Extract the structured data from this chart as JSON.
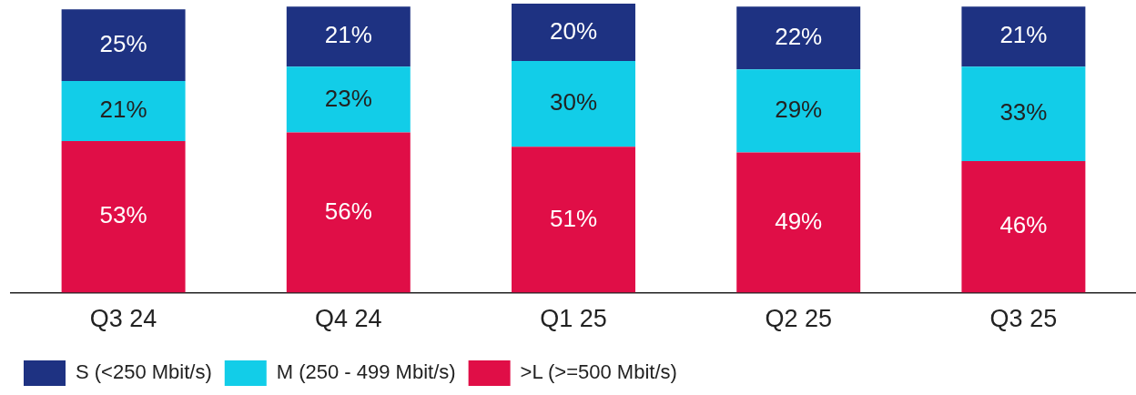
{
  "chart_data": {
    "type": "bar",
    "stacked": true,
    "legend": "bottom left",
    "tick_labels": "x",
    "grid": false,
    "categories": [
      "Q3 24",
      "Q4 24",
      "Q1 25",
      "Q2 25",
      "Q3 25"
    ],
    "series": [
      {
        "name": ">L (>=500 Mbit/s)",
        "color": "#e00e47",
        "values": [
          53,
          56,
          51,
          49,
          46
        ],
        "value_labels": [
          "53%",
          "56%",
          "51%",
          "49%",
          "46%"
        ]
      },
      {
        "name": "M (250 - 499 Mbit/s)",
        "color": "#12cde8",
        "values": [
          21,
          23,
          30,
          29,
          33
        ],
        "value_labels": [
          "21%",
          "23%",
          "30%",
          "29%",
          "33%"
        ]
      },
      {
        "name": "S (<250 Mbit/s)",
        "color": "#1e3282",
        "values": [
          25,
          21,
          20,
          22,
          21
        ],
        "value_labels": [
          "25%",
          "21%",
          "20%",
          "22%",
          "21%"
        ]
      }
    ]
  }
}
